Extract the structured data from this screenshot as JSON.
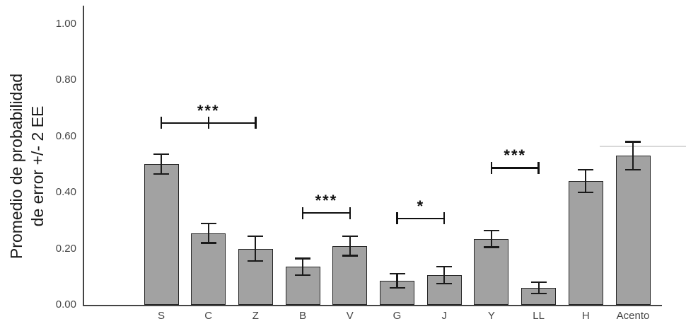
{
  "chart_data": {
    "type": "bar",
    "title": "",
    "xlabel": "",
    "ylabel": "Promedio de probabilidad de error +/- 2 EE",
    "ylabel_lines": [
      "Promedio de probabilidad",
      "de error +/- 2 EE"
    ],
    "categories": [
      "S",
      "C",
      "Z",
      "B",
      "V",
      "G",
      "J",
      "Y",
      "LL",
      "H",
      "Acento"
    ],
    "values": [
      0.5,
      0.255,
      0.2,
      0.135,
      0.21,
      0.085,
      0.105,
      0.235,
      0.06,
      0.44,
      0.53
    ],
    "error_2ee": [
      0.035,
      0.035,
      0.045,
      0.03,
      0.035,
      0.025,
      0.03,
      0.03,
      0.02,
      0.04,
      0.05
    ],
    "yticks": [
      "0.00",
      "0.20",
      "0.40",
      "0.60",
      "0.80",
      "1.00"
    ],
    "ytick_values": [
      0,
      0.2,
      0.4,
      0.6,
      0.8,
      1.0
    ],
    "ylim": [
      0,
      1.06
    ],
    "grid": false,
    "legend": "none",
    "significance_brackets": [
      {
        "from": "S",
        "to": "Z",
        "label": "***",
        "y": 0.65,
        "mid_tick": true
      },
      {
        "from": "B",
        "to": "V",
        "label": "***",
        "y": 0.33,
        "mid_tick": false
      },
      {
        "from": "G",
        "to": "J",
        "label": "*",
        "y": 0.31,
        "mid_tick": false
      },
      {
        "from": "Y",
        "to": "LL",
        "label": "***",
        "y": 0.49,
        "mid_tick": false
      }
    ],
    "colors": {
      "bar_fill": "#a2a2a2",
      "bar_border": "#262626",
      "error_bar": "#1a1a1a",
      "bracket": "#111111",
      "axis": "#444444",
      "tick_label": "#444444",
      "faint_line": "#d8d8d8"
    }
  }
}
